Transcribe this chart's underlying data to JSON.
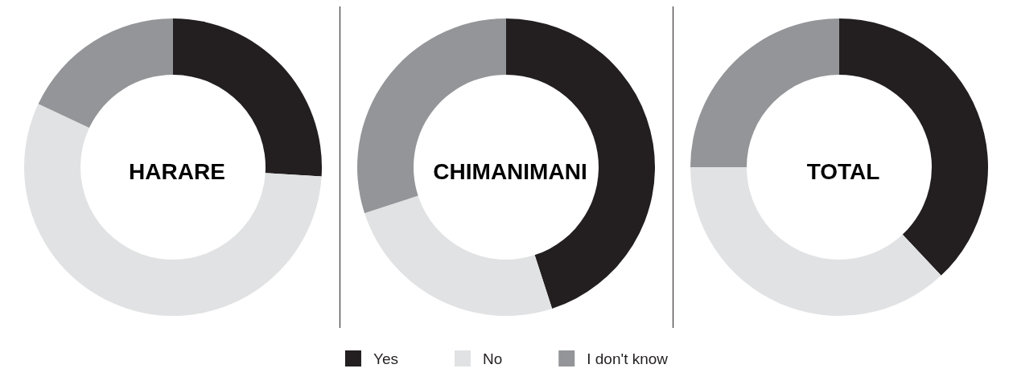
{
  "chart_data": {
    "type": "donut",
    "categories": [
      "Yes",
      "No",
      "I don't know"
    ],
    "colors": [
      "#231f20",
      "#e1e2e3",
      "#939598"
    ],
    "legend": "bottom",
    "series": [
      {
        "name": "HARARE",
        "values": [
          26,
          56,
          18
        ]
      },
      {
        "name": "CHIMANIMANI",
        "values": [
          45,
          25,
          30
        ]
      },
      {
        "name": "TOTAL",
        "values": [
          38,
          37,
          25
        ]
      }
    ]
  }
}
